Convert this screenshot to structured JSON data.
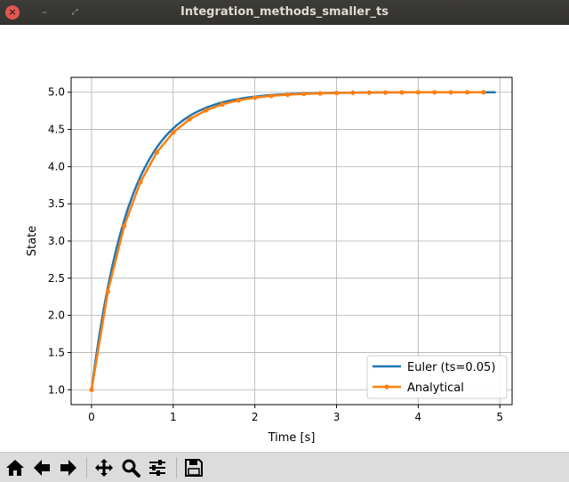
{
  "window": {
    "title": "Integration_methods_smaller_ts",
    "close_symbol": "×",
    "minimize_symbol": "–",
    "maximize_symbol": "⤢"
  },
  "toolbar": {
    "buttons": [
      {
        "name": "home-icon",
        "tooltip": "Reset original view"
      },
      {
        "name": "back-arrow-icon",
        "tooltip": "Back to previous view"
      },
      {
        "name": "forward-arrow-icon",
        "tooltip": "Forward to next view"
      },
      {
        "name": "pan-move-icon",
        "tooltip": "Pan axes"
      },
      {
        "name": "zoom-magnifier-icon",
        "tooltip": "Zoom to rectangle"
      },
      {
        "name": "configure-subplots-icon",
        "tooltip": "Configure subplots"
      },
      {
        "name": "save-floppy-icon",
        "tooltip": "Save the figure"
      }
    ]
  },
  "chart_data": {
    "type": "line",
    "title": "",
    "xlabel": "Time [s]",
    "ylabel": "State",
    "xlim": [
      -0.25,
      5.15
    ],
    "ylim": [
      0.8,
      5.2
    ],
    "xticks": [
      0,
      1,
      2,
      3,
      4,
      5
    ],
    "yticks": [
      1.0,
      1.5,
      2.0,
      2.5,
      3.0,
      3.5,
      4.0,
      4.5,
      5.0
    ],
    "xtick_labels": [
      "0",
      "1",
      "2",
      "3",
      "4",
      "5"
    ],
    "ytick_labels": [
      "1.0",
      "1.5",
      "2.0",
      "2.5",
      "3.0",
      "3.5",
      "4.0",
      "4.5",
      "5.0"
    ],
    "grid": true,
    "legend_position": "lower-right",
    "series": [
      {
        "name": "Euler (ts=0.05)",
        "color": "#1f77b4",
        "marker": false,
        "model": {
          "y0": 1.0,
          "y_final": 5.0,
          "rate": 2.0,
          "step": 0.05,
          "t_end": 4.95
        }
      },
      {
        "name": "Analytical",
        "color": "#ff7f0e",
        "marker": true,
        "x": [
          0.0,
          0.2,
          0.4,
          0.6,
          0.8,
          1.0,
          1.2,
          1.4,
          1.6,
          1.8,
          2.0,
          2.2,
          2.4,
          2.6,
          2.8,
          3.0,
          3.2,
          3.4,
          3.6,
          3.8,
          4.0,
          4.2,
          4.4,
          4.6,
          4.8
        ],
        "y": [
          1.0,
          2.319,
          3.202,
          3.795,
          4.192,
          4.459,
          4.637,
          4.757,
          4.837,
          4.891,
          4.927,
          4.951,
          4.967,
          4.978,
          4.985,
          4.99,
          4.993,
          4.995,
          4.997,
          4.998,
          4.999,
          4.999,
          4.999,
          5.0,
          5.0
        ]
      }
    ]
  }
}
